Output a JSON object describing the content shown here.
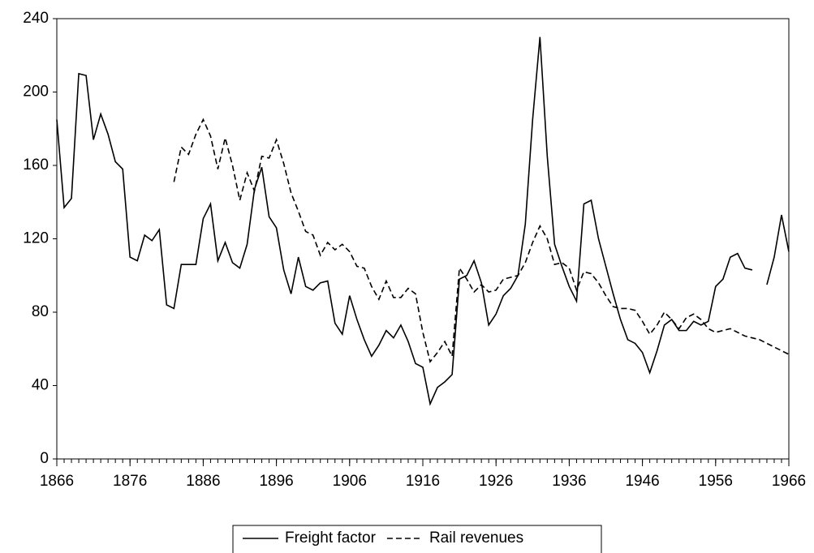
{
  "chart_data": {
    "type": "line",
    "x": [
      1866,
      1867,
      1868,
      1869,
      1870,
      1871,
      1872,
      1873,
      1874,
      1875,
      1876,
      1877,
      1878,
      1879,
      1880,
      1881,
      1882,
      1883,
      1884,
      1885,
      1886,
      1887,
      1888,
      1889,
      1890,
      1891,
      1892,
      1893,
      1894,
      1895,
      1896,
      1897,
      1898,
      1899,
      1900,
      1901,
      1902,
      1903,
      1904,
      1905,
      1906,
      1907,
      1908,
      1909,
      1910,
      1911,
      1912,
      1913,
      1914,
      1915,
      1916,
      1917,
      1918,
      1919,
      1920,
      1921,
      1922,
      1923,
      1924,
      1925,
      1926,
      1927,
      1928,
      1929,
      1930,
      1931,
      1932,
      1933,
      1934,
      1935,
      1936,
      1937,
      1938,
      1939,
      1940,
      1941,
      1942,
      1943,
      1944,
      1945,
      1946,
      1947,
      1948,
      1949,
      1950,
      1951,
      1952,
      1953,
      1954,
      1955,
      1956,
      1957,
      1958,
      1959,
      1960,
      1961,
      1962,
      1963,
      1964,
      1965,
      1966
    ],
    "series": [
      {
        "name": "Freight factor",
        "color": "#000000",
        "dash": "solid",
        "values": [
          185,
          137,
          142,
          210,
          209,
          174,
          188,
          177,
          162,
          158,
          110,
          108,
          122,
          119,
          125,
          84,
          82,
          106,
          106,
          106,
          131,
          139,
          108,
          118,
          107,
          104,
          117,
          147,
          159,
          132,
          126,
          103,
          90,
          110,
          94,
          92,
          96,
          97,
          74,
          68,
          89,
          76,
          65,
          56,
          62,
          70,
          66,
          73,
          64,
          52,
          50,
          30,
          39,
          42,
          46,
          98,
          100,
          108,
          96,
          73,
          79,
          89,
          93,
          100,
          128,
          185,
          230,
          165,
          117,
          105,
          94,
          86,
          139,
          141,
          120,
          105,
          90,
          76,
          65,
          63,
          58,
          47,
          59,
          73,
          76,
          70,
          70,
          75,
          73,
          75,
          94,
          98,
          110,
          112,
          104,
          103,
          null,
          95,
          110,
          133,
          113
        ]
      },
      {
        "name": "Rail revenues",
        "color": "#000000",
        "dash": "dashed",
        "values": [
          null,
          null,
          null,
          null,
          null,
          null,
          null,
          null,
          null,
          null,
          null,
          null,
          null,
          null,
          null,
          null,
          151,
          170,
          166,
          177,
          185,
          176,
          158,
          175,
          160,
          141,
          156,
          146,
          165,
          164,
          174,
          161,
          145,
          135,
          124,
          122,
          111,
          118,
          114,
          117,
          113,
          105,
          104,
          94,
          87,
          97,
          88,
          88,
          93,
          90,
          69,
          53,
          58,
          64,
          56,
          104,
          98,
          91,
          95,
          91,
          92,
          98,
          99,
          100,
          107,
          118,
          127,
          120,
          106,
          107,
          104,
          92,
          102,
          101,
          96,
          89,
          83,
          82,
          82,
          81,
          75,
          68,
          73,
          80,
          76,
          71,
          77,
          79,
          76,
          71,
          69,
          70,
          71,
          69,
          67,
          66,
          65,
          63,
          61,
          59,
          57
        ]
      }
    ],
    "xlim": [
      1866,
      1966
    ],
    "xticks": [
      1866,
      1876,
      1886,
      1896,
      1906,
      1916,
      1926,
      1936,
      1946,
      1956,
      1966
    ],
    "ylim": [
      0,
      240
    ],
    "yticks": [
      0,
      40,
      80,
      120,
      160,
      200,
      240
    ],
    "grid": false,
    "legend": "bottom"
  }
}
